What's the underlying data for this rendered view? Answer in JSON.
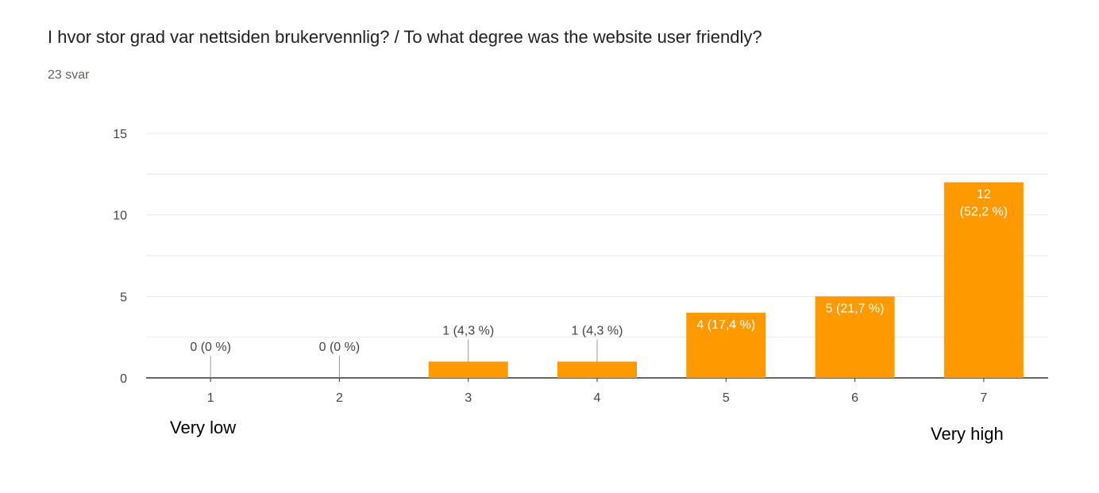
{
  "question": {
    "title": "I hvor stor grad var nettsiden brukervennlig? / To what degree was the website user friendly?",
    "responses": "23 svar"
  },
  "scale_labels": {
    "low": "Very low",
    "high": "Very high"
  },
  "colors": {
    "bar": "#ff9900",
    "grid": "#e8e8e8",
    "axis": "#333333",
    "text": "#444444"
  },
  "chart_data": {
    "type": "bar",
    "categories": [
      "1",
      "2",
      "3",
      "4",
      "5",
      "6",
      "7"
    ],
    "values": [
      0,
      0,
      1,
      1,
      4,
      5,
      12
    ],
    "data_labels": [
      "0 (0 %)",
      "0 (0 %)",
      "1 (4,3 %)",
      "1 (4,3 %)",
      "4 (17,4 %)",
      "5 (21,7 %)",
      "12 (52,2 %)"
    ],
    "ylim": [
      0,
      15
    ],
    "yticks": [
      0,
      5,
      10,
      15
    ],
    "grid": true,
    "legend": "none"
  }
}
